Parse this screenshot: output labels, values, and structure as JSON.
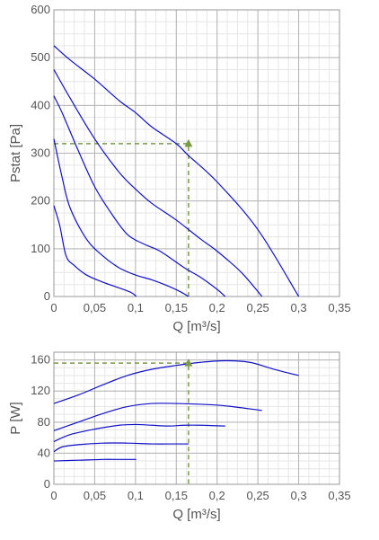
{
  "colors": {
    "curve": "#1010c8",
    "grid_major": "#b4b4b4",
    "grid_minor": "#e6e6e6",
    "frame": "#999999",
    "marker": "#7a9a48",
    "guide": "#7a9a48",
    "text": "#555555"
  },
  "chart_data": [
    {
      "type": "line",
      "xlabel": "Q [m³/s]",
      "ylabel": "Pstat [Pa]",
      "xlim": [
        0,
        0.35
      ],
      "ylim": [
        0,
        600
      ],
      "grid": true,
      "x_ticks": [
        0,
        0.05,
        0.1,
        0.15,
        0.2,
        0.25,
        0.3,
        0.35
      ],
      "x_tick_labels": [
        "0",
        "0,05",
        "0,1",
        "0,15",
        "0,2",
        "0,25",
        "0,3",
        "0,35"
      ],
      "y_ticks": [
        0,
        100,
        200,
        300,
        400,
        500,
        600
      ],
      "y_tick_labels": [
        "0",
        "100",
        "200",
        "300",
        "400",
        "500",
        "600"
      ],
      "series": [
        {
          "x": [
            0,
            0.02,
            0.05,
            0.08,
            0.1,
            0.12,
            0.15,
            0.165,
            0.2,
            0.25,
            0.3
          ],
          "y": [
            525,
            495,
            455,
            410,
            385,
            355,
            320,
            295,
            240,
            140,
            0
          ]
        },
        {
          "x": [
            0,
            0.02,
            0.05,
            0.08,
            0.1,
            0.12,
            0.15,
            0.18,
            0.2,
            0.23,
            0.255
          ],
          "y": [
            475,
            415,
            330,
            260,
            225,
            195,
            160,
            120,
            95,
            50,
            0
          ]
        },
        {
          "x": [
            0,
            0.01,
            0.03,
            0.05,
            0.07,
            0.09,
            0.11,
            0.13,
            0.16,
            0.18,
            0.2,
            0.21
          ],
          "y": [
            420,
            385,
            305,
            230,
            175,
            130,
            110,
            95,
            60,
            40,
            15,
            0
          ]
        },
        {
          "x": [
            0,
            0.01,
            0.02,
            0.04,
            0.06,
            0.08,
            0.1,
            0.12,
            0.14,
            0.155,
            0.165
          ],
          "y": [
            330,
            250,
            185,
            120,
            85,
            60,
            45,
            35,
            22,
            10,
            0
          ]
        },
        {
          "x": [
            0,
            0.007,
            0.015,
            0.025,
            0.04,
            0.06,
            0.08,
            0.095,
            0.101
          ],
          "y": [
            190,
            150,
            85,
            65,
            45,
            30,
            18,
            8,
            0
          ]
        }
      ],
      "operating_point": {
        "x": 0.165,
        "y": 320
      }
    },
    {
      "type": "line",
      "xlabel": "Q [m³/s]",
      "ylabel": "P [W]",
      "xlim": [
        0,
        0.35
      ],
      "ylim": [
        0,
        170
      ],
      "grid": true,
      "x_ticks": [
        0,
        0.05,
        0.1,
        0.15,
        0.2,
        0.25,
        0.3,
        0.35
      ],
      "x_tick_labels": [
        "0",
        "0,05",
        "0,1",
        "0,15",
        "0,2",
        "0,25",
        "0,3",
        "0,35"
      ],
      "y_ticks": [
        0,
        40,
        80,
        120,
        160
      ],
      "y_tick_labels": [
        "0",
        "40",
        "80",
        "120",
        "160"
      ],
      "series": [
        {
          "x": [
            0,
            0.03,
            0.06,
            0.09,
            0.12,
            0.15,
            0.18,
            0.21,
            0.24,
            0.27,
            0.3
          ],
          "y": [
            104,
            115,
            128,
            140,
            148,
            153,
            157,
            159,
            157,
            148,
            140
          ]
        },
        {
          "x": [
            0,
            0.03,
            0.06,
            0.09,
            0.12,
            0.15,
            0.18,
            0.21,
            0.255
          ],
          "y": [
            69,
            80,
            91,
            100,
            104,
            104,
            103,
            101,
            95
          ]
        },
        {
          "x": [
            0,
            0.02,
            0.05,
            0.08,
            0.1,
            0.12,
            0.14,
            0.16,
            0.18,
            0.21
          ],
          "y": [
            55,
            64,
            71,
            76,
            77,
            76,
            75,
            76,
            76,
            75
          ]
        },
        {
          "x": [
            0,
            0.01,
            0.03,
            0.06,
            0.09,
            0.12,
            0.15,
            0.165
          ],
          "y": [
            42,
            48,
            51,
            53,
            53,
            52,
            52,
            52
          ]
        },
        {
          "x": [
            0,
            0.03,
            0.06,
            0.08,
            0.101
          ],
          "y": [
            30,
            31,
            32,
            32,
            32
          ]
        }
      ],
      "operating_point": {
        "x": 0.165,
        "y": 156
      }
    }
  ]
}
